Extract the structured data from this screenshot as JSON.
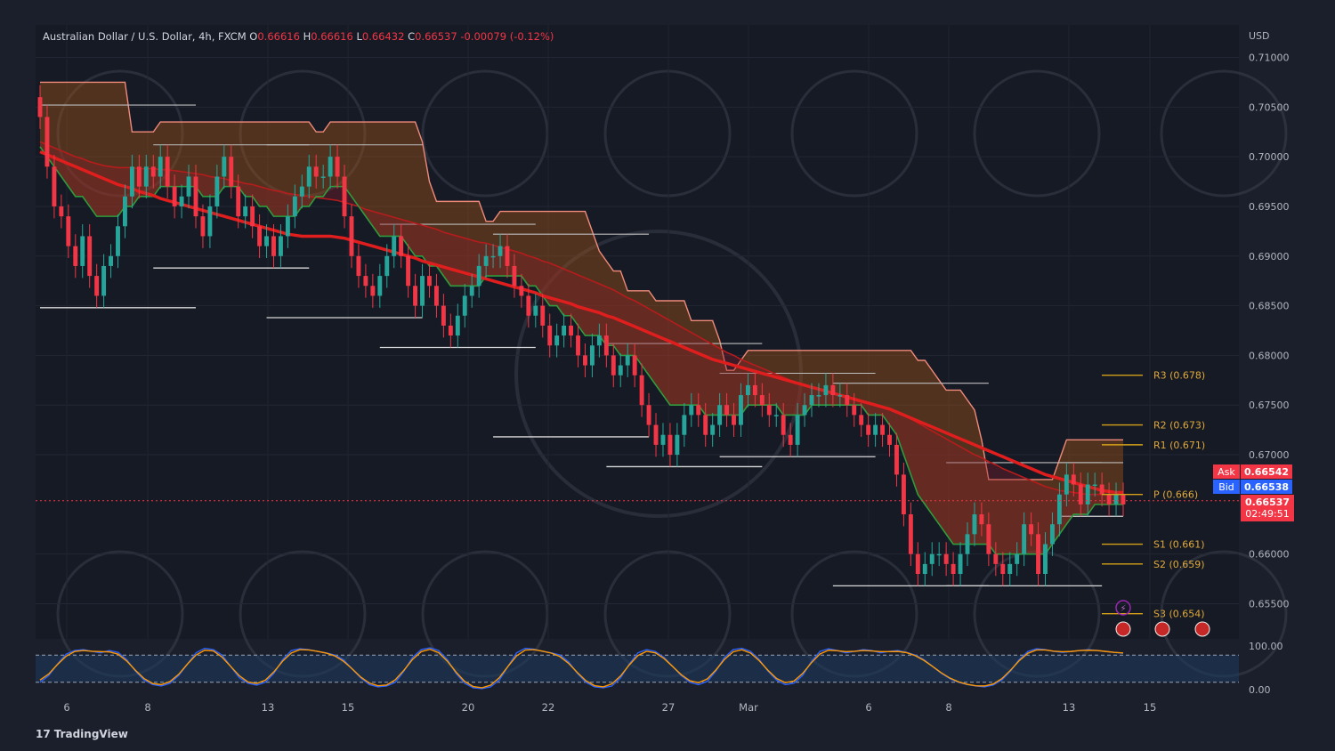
{
  "header": {
    "symbol": "Australian Dollar / U.S. Dollar, 4h, FXCM",
    "o_label": "O",
    "o": "0.66616",
    "h_label": "H",
    "h": "0.66616",
    "l_label": "L",
    "l": "0.66432",
    "c_label": "C",
    "c": "0.66537",
    "change": "-0.00079 (-0.12%)"
  },
  "footer": {
    "brand": "TradingView",
    "brand_mark": "17"
  },
  "quote": {
    "ask_label": "Ask",
    "ask": "0.66542",
    "bid_label": "Bid",
    "bid": "0.66538",
    "last": "0.66537",
    "countdown": "02:49:51"
  },
  "colors": {
    "background": "#1b1f2b",
    "bull": "#26a69a",
    "bear": "#f23645",
    "ema": "#e01e1e",
    "pivot": "#d4a017",
    "cloud": "#b45a14"
  },
  "chart_data": {
    "type": "candlestick",
    "y_unit": "USD",
    "ylim": [
      0.6525,
      0.7125
    ],
    "y_ticks": [
      "0.71000",
      "0.70500",
      "0.70000",
      "0.69500",
      "0.69000",
      "0.68500",
      "0.68000",
      "0.67500",
      "0.67000",
      "0.66000",
      "0.65500"
    ],
    "x_ticks": [
      "6",
      "8",
      "13",
      "15",
      "20",
      "22",
      "27",
      "Mar",
      "6",
      "8",
      "13",
      "15"
    ],
    "last_price": 0.66537,
    "candles_close": [
      0.704,
      0.699,
      0.695,
      0.694,
      0.691,
      0.689,
      0.692,
      0.688,
      0.686,
      0.689,
      0.69,
      0.693,
      0.696,
      0.699,
      0.697,
      0.699,
      0.698,
      0.7,
      0.697,
      0.695,
      0.696,
      0.698,
      0.694,
      0.692,
      0.695,
      0.698,
      0.7,
      0.697,
      0.694,
      0.695,
      0.693,
      0.691,
      0.692,
      0.69,
      0.692,
      0.694,
      0.696,
      0.697,
      0.699,
      0.698,
      0.698,
      0.7,
      0.698,
      0.694,
      0.69,
      0.688,
      0.687,
      0.686,
      0.688,
      0.69,
      0.692,
      0.69,
      0.687,
      0.685,
      0.688,
      0.687,
      0.685,
      0.683,
      0.682,
      0.684,
      0.686,
      0.687,
      0.689,
      0.69,
      0.69,
      0.691,
      0.689,
      0.687,
      0.686,
      0.684,
      0.685,
      0.683,
      0.681,
      0.682,
      0.683,
      0.682,
      0.68,
      0.679,
      0.681,
      0.682,
      0.68,
      0.678,
      0.679,
      0.68,
      0.678,
      0.675,
      0.673,
      0.671,
      0.672,
      0.67,
      0.672,
      0.674,
      0.675,
      0.674,
      0.672,
      0.673,
      0.675,
      0.674,
      0.673,
      0.676,
      0.677,
      0.676,
      0.675,
      0.674,
      0.674,
      0.672,
      0.671,
      0.674,
      0.675,
      0.676,
      0.676,
      0.677,
      0.676,
      0.676,
      0.675,
      0.674,
      0.673,
      0.672,
      0.673,
      0.672,
      0.671,
      0.668,
      0.664,
      0.66,
      0.658,
      0.659,
      0.66,
      0.66,
      0.659,
      0.658,
      0.66,
      0.662,
      0.664,
      0.663,
      0.66,
      0.659,
      0.658,
      0.659,
      0.66,
      0.663,
      0.662,
      0.658,
      0.661,
      0.663,
      0.666,
      0.668,
      0.667,
      0.665,
      0.667,
      0.667,
      0.666,
      0.665,
      0.666,
      0.665
    ],
    "ema_fast": [
      0.701,
      0.7,
      0.699,
      0.698,
      0.697,
      0.696,
      0.696,
      0.695,
      0.694,
      0.694,
      0.694,
      0.694,
      0.695,
      0.695,
      0.696,
      0.696,
      0.696,
      0.697,
      0.697,
      0.697,
      0.697,
      0.697,
      0.697,
      0.696,
      0.696,
      0.696,
      0.697,
      0.697,
      0.697,
      0.696,
      0.696,
      0.695,
      0.695,
      0.694,
      0.694,
      0.694,
      0.694,
      0.695,
      0.695,
      0.696,
      0.696,
      0.697,
      0.697,
      0.697,
      0.696,
      0.695,
      0.694,
      0.693,
      0.692,
      0.692,
      0.692,
      0.692,
      0.691,
      0.69,
      0.69,
      0.689,
      0.689,
      0.688,
      0.687,
      0.687,
      0.687,
      0.687,
      0.687,
      0.688,
      0.688,
      0.688,
      0.688,
      0.688,
      0.688,
      0.687,
      0.687,
      0.686,
      0.685,
      0.685,
      0.684,
      0.684,
      0.683,
      0.682,
      0.682,
      0.682,
      0.681,
      0.681,
      0.68,
      0.68,
      0.68,
      0.679,
      0.678,
      0.677,
      0.676,
      0.675,
      0.675,
      0.675,
      0.675,
      0.675,
      0.674,
      0.674,
      0.674,
      0.674,
      0.674,
      0.674,
      0.675,
      0.675,
      0.675,
      0.675,
      0.675,
      0.674,
      0.674,
      0.674,
      0.674,
      0.675,
      0.675,
      0.675,
      0.675,
      0.675,
      0.675,
      0.675,
      0.675,
      0.674,
      0.674,
      0.674,
      0.673,
      0.672,
      0.67,
      0.668,
      0.666,
      0.665,
      0.664,
      0.663,
      0.662,
      0.661,
      0.661,
      0.661,
      0.661,
      0.661,
      0.661,
      0.66,
      0.66,
      0.66,
      0.66,
      0.66,
      0.66,
      0.66,
      0.66,
      0.661,
      0.662,
      0.663,
      0.664,
      0.664,
      0.664,
      0.665,
      0.665,
      0.665,
      0.665,
      0.665
    ],
    "ema_slow": [
      0.7015,
      0.7012,
      0.7009,
      0.7006,
      0.7003,
      0.7,
      0.6998,
      0.6995,
      0.6993,
      0.6991,
      0.699,
      0.6989,
      0.6989,
      0.6989,
      0.6988,
      0.6988,
      0.6988,
      0.6987,
      0.6987,
      0.6986,
      0.6985,
      0.6984,
      0.6983,
      0.6982,
      0.698,
      0.6979,
      0.6978,
      0.6976,
      0.6975,
      0.6973,
      0.6972,
      0.697,
      0.6968,
      0.6966,
      0.6965,
      0.6963,
      0.6962,
      0.6961,
      0.696,
      0.6959,
      0.6958,
      0.6957,
      0.6956,
      0.6954,
      0.6952,
      0.695,
      0.6947,
      0.6945,
      0.6943,
      0.6941,
      0.6939,
      0.6937,
      0.6935,
      0.6933,
      0.6931,
      0.6929,
      0.6927,
      0.6924,
      0.6922,
      0.692,
      0.6918,
      0.6916,
      0.6914,
      0.6913,
      0.6911,
      0.6909,
      0.6907,
      0.6905,
      0.6903,
      0.69,
      0.6898,
      0.6895,
      0.6893,
      0.689,
      0.6887,
      0.6884,
      0.6881,
      0.6878,
      0.6875,
      0.6872,
      0.6869,
      0.6866,
      0.6862,
      0.6858,
      0.6855,
      0.6851,
      0.6847,
      0.6843,
      0.6839,
      0.6835,
      0.6831,
      0.6827,
      0.6823,
      0.6819,
      0.6815,
      0.6811,
      0.6807,
      0.6803,
      0.68,
      0.6796,
      0.6793,
      0.679,
      0.6787,
      0.6784,
      0.6781,
      0.6778,
      0.6775,
      0.6772,
      0.677,
      0.6768,
      0.6766,
      0.6764,
      0.6762,
      0.676,
      0.6758,
      0.6756,
      0.6754,
      0.6752,
      0.675,
      0.6748,
      0.6746,
      0.6743,
      0.674,
      0.6736,
      0.6732,
      0.6728,
      0.6724,
      0.672,
      0.6716,
      0.6712,
      0.6708,
      0.6704,
      0.67,
      0.6697,
      0.6693,
      0.669,
      0.6686,
      0.6683,
      0.668,
      0.6677,
      0.6674,
      0.6671,
      0.6668,
      0.6666,
      0.6664,
      0.6663,
      0.6662,
      0.6661,
      0.666,
      0.666,
      0.666,
      0.666,
      0.666,
      0.666
    ],
    "ema_main": [
      0.7005,
      0.7002,
      0.6999,
      0.6996,
      0.6993,
      0.699,
      0.6987,
      0.6984,
      0.6981,
      0.6978,
      0.6975,
      0.6972,
      0.697,
      0.6968,
      0.6965,
      0.6963,
      0.6961,
      0.6958,
      0.6956,
      0.6954,
      0.6952,
      0.695,
      0.6948,
      0.6946,
      0.6944,
      0.6942,
      0.694,
      0.6938,
      0.6936,
      0.6934,
      0.6932,
      0.693,
      0.6928,
      0.6926,
      0.6924,
      0.6922,
      0.6921,
      0.692,
      0.692,
      0.692,
      0.692,
      0.692,
      0.6919,
      0.6918,
      0.6916,
      0.6914,
      0.6912,
      0.691,
      0.6908,
      0.6906,
      0.6904,
      0.6902,
      0.69,
      0.6898,
      0.6895,
      0.6893,
      0.6891,
      0.6889,
      0.6887,
      0.6885,
      0.6883,
      0.6881,
      0.6879,
      0.6877,
      0.6875,
      0.6873,
      0.6871,
      0.6869,
      0.6867,
      0.6865,
      0.6863,
      0.686,
      0.6858,
      0.6856,
      0.6854,
      0.6852,
      0.6849,
      0.6847,
      0.6845,
      0.6843,
      0.684,
      0.6838,
      0.6835,
      0.6832,
      0.6829,
      0.6826,
      0.6823,
      0.682,
      0.6817,
      0.6814,
      0.6811,
      0.6808,
      0.6805,
      0.6802,
      0.6799,
      0.6796,
      0.6794,
      0.6792,
      0.679,
      0.6788,
      0.6786,
      0.6784,
      0.6782,
      0.678,
      0.6778,
      0.6776,
      0.6774,
      0.6772,
      0.677,
      0.6768,
      0.6766,
      0.6764,
      0.6762,
      0.676,
      0.6758,
      0.6756,
      0.6754,
      0.6752,
      0.675,
      0.6748,
      0.6746,
      0.6743,
      0.674,
      0.6737,
      0.6734,
      0.6731,
      0.6728,
      0.6725,
      0.6722,
      0.6719,
      0.6716,
      0.6713,
      0.671,
      0.6707,
      0.6704,
      0.6701,
      0.6698,
      0.6695,
      0.6692,
      0.6689,
      0.6686,
      0.6683,
      0.668,
      0.6678,
      0.6676,
      0.6674,
      0.6672,
      0.667,
      0.6668,
      0.6666,
      0.6664,
      0.6663,
      0.6662,
      0.6662
    ],
    "pivots": [
      {
        "label": "R3 (0.678)",
        "value": 0.678
      },
      {
        "label": "R2 (0.673)",
        "value": 0.673
      },
      {
        "label": "R1 (0.671)",
        "value": 0.671
      },
      {
        "label": "P (0.666)",
        "value": 0.666
      },
      {
        "label": "S1 (0.661)",
        "value": 0.661
      },
      {
        "label": "S2 (0.659)",
        "value": 0.659
      },
      {
        "label": "S3 (0.654)",
        "value": 0.654
      }
    ],
    "oscillator": {
      "ticks": [
        "100.00",
        "0.00"
      ],
      "ylim": [
        0,
        100
      ],
      "levels": [
        80,
        20
      ],
      "k": [
        20,
        35,
        60,
        82,
        90,
        92,
        88,
        85,
        90,
        86,
        70,
        45,
        25,
        15,
        12,
        18,
        35,
        60,
        85,
        95,
        92,
        80,
        55,
        30,
        18,
        14,
        20,
        40,
        70,
        90,
        94,
        92,
        88,
        85,
        80,
        70,
        50,
        30,
        15,
        10,
        12,
        20,
        45,
        75,
        92,
        96,
        90,
        70,
        40,
        18,
        8,
        6,
        10,
        25,
        55,
        85,
        95,
        93,
        88,
        85,
        80,
        65,
        40,
        20,
        10,
        8,
        12,
        30,
        60,
        85,
        92,
        88,
        75,
        55,
        35,
        20,
        15,
        22,
        45,
        75,
        92,
        95,
        88,
        70,
        45,
        25,
        15,
        18,
        35,
        65,
        88,
        94,
        90,
        85,
        88,
        92,
        90,
        85,
        88,
        90,
        86,
        80,
        70,
        55,
        40,
        28,
        20,
        15,
        12,
        10,
        14,
        25,
        45,
        70,
        88,
        94,
        92,
        88,
        86,
        88,
        90,
        92,
        90,
        88,
        86,
        84
      ]
    }
  }
}
